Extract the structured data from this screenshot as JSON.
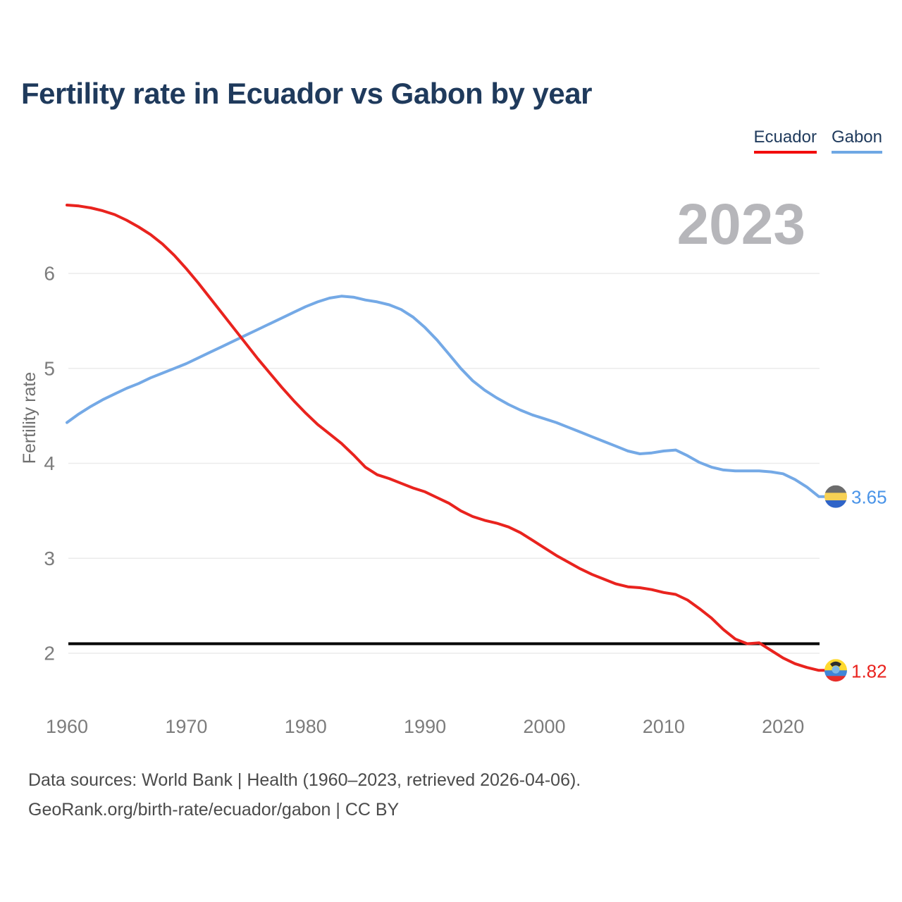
{
  "page": {
    "title": "Fertility rate in Ecuador vs Gabon by year",
    "watermark": "2023",
    "footer_line1": "Data sources: World Bank | Health (1960–2023, retrieved 2026-04-06).",
    "footer_line2": "GeoRank.org/birth-rate/ecuador/gabon | CC BY"
  },
  "legend": {
    "position": "top-right",
    "items": [
      {
        "label": "Ecuador",
        "underline_color": "#f20d0d"
      },
      {
        "label": "Gabon",
        "underline_color": "#6fa8e4"
      }
    ]
  },
  "chart_data": {
    "type": "line",
    "title": "Fertility rate in Ecuador vs Gabon by year",
    "xlabel": "",
    "ylabel": "Fertility rate",
    "x_ticks": [
      1960,
      1970,
      1980,
      1990,
      2000,
      2010,
      2020
    ],
    "y_ticks": [
      2,
      3,
      4,
      5,
      6
    ],
    "xlim": [
      1960,
      2023
    ],
    "ylim": [
      1.75,
      6.85
    ],
    "grid": true,
    "grid_color": "#ebebeb",
    "axis_text_color": "#7c7c7c",
    "axis_title_color": "#707070",
    "watermark_color": "#b6b6ba",
    "reference_line": {
      "value": 2.1,
      "color": "#000000"
    },
    "x": [
      1960,
      1961,
      1962,
      1963,
      1964,
      1965,
      1966,
      1967,
      1968,
      1969,
      1970,
      1971,
      1972,
      1973,
      1974,
      1975,
      1976,
      1977,
      1978,
      1979,
      1980,
      1981,
      1982,
      1983,
      1984,
      1985,
      1986,
      1987,
      1988,
      1989,
      1990,
      1991,
      1992,
      1993,
      1994,
      1995,
      1996,
      1997,
      1998,
      1999,
      2000,
      2001,
      2002,
      2003,
      2004,
      2005,
      2006,
      2007,
      2008,
      2009,
      2010,
      2011,
      2012,
      2013,
      2014,
      2015,
      2016,
      2017,
      2018,
      2019,
      2020,
      2021,
      2022,
      2023
    ],
    "series": [
      {
        "name": "Ecuador",
        "color": "#e9231e",
        "label_color": "#e9231e",
        "final_value": 1.82,
        "final_label": "1.82",
        "flag": {
          "stripes": [
            {
              "color": "#ffd92e",
              "h": 0.5
            },
            {
              "color": "#4086d8",
              "h": 0.25
            },
            {
              "color": "#e62e2a",
              "h": 0.25
            }
          ],
          "emblem": true,
          "emblem_color": "#2e2e2e",
          "emblem_disc_color": "#7db8e8"
        },
        "values": [
          6.72,
          6.71,
          6.69,
          6.66,
          6.62,
          6.56,
          6.49,
          6.41,
          6.31,
          6.19,
          6.05,
          5.9,
          5.74,
          5.58,
          5.42,
          5.26,
          5.1,
          4.95,
          4.8,
          4.66,
          4.53,
          4.41,
          4.31,
          4.21,
          4.09,
          3.96,
          3.88,
          3.84,
          3.79,
          3.74,
          3.7,
          3.64,
          3.58,
          3.5,
          3.44,
          3.4,
          3.37,
          3.33,
          3.27,
          3.19,
          3.11,
          3.03,
          2.96,
          2.89,
          2.83,
          2.78,
          2.73,
          2.7,
          2.69,
          2.67,
          2.64,
          2.62,
          2.56,
          2.47,
          2.37,
          2.25,
          2.15,
          2.1,
          2.11,
          2.03,
          1.95,
          1.89,
          1.85,
          1.82
        ]
      },
      {
        "name": "Gabon",
        "color": "#74a9e6",
        "label_color": "#4a94e8",
        "final_value": 3.65,
        "final_label": "3.65",
        "flag": {
          "stripes": [
            {
              "color": "#6c6c6c",
              "h": 0.3333
            },
            {
              "color": "#f7d154",
              "h": 0.3334
            },
            {
              "color": "#2f64c8",
              "h": 0.3333
            }
          ],
          "emblem": false
        },
        "values": [
          4.43,
          4.52,
          4.6,
          4.67,
          4.73,
          4.79,
          4.84,
          4.9,
          4.95,
          5.0,
          5.05,
          5.11,
          5.17,
          5.23,
          5.29,
          5.35,
          5.41,
          5.47,
          5.53,
          5.59,
          5.65,
          5.7,
          5.74,
          5.76,
          5.75,
          5.72,
          5.7,
          5.67,
          5.62,
          5.54,
          5.43,
          5.3,
          5.15,
          5.0,
          4.87,
          4.77,
          4.69,
          4.62,
          4.56,
          4.51,
          4.47,
          4.43,
          4.38,
          4.33,
          4.28,
          4.23,
          4.18,
          4.13,
          4.1,
          4.11,
          4.13,
          4.14,
          4.08,
          4.01,
          3.96,
          3.93,
          3.92,
          3.92,
          3.92,
          3.91,
          3.89,
          3.83,
          3.75,
          3.65
        ]
      }
    ]
  }
}
